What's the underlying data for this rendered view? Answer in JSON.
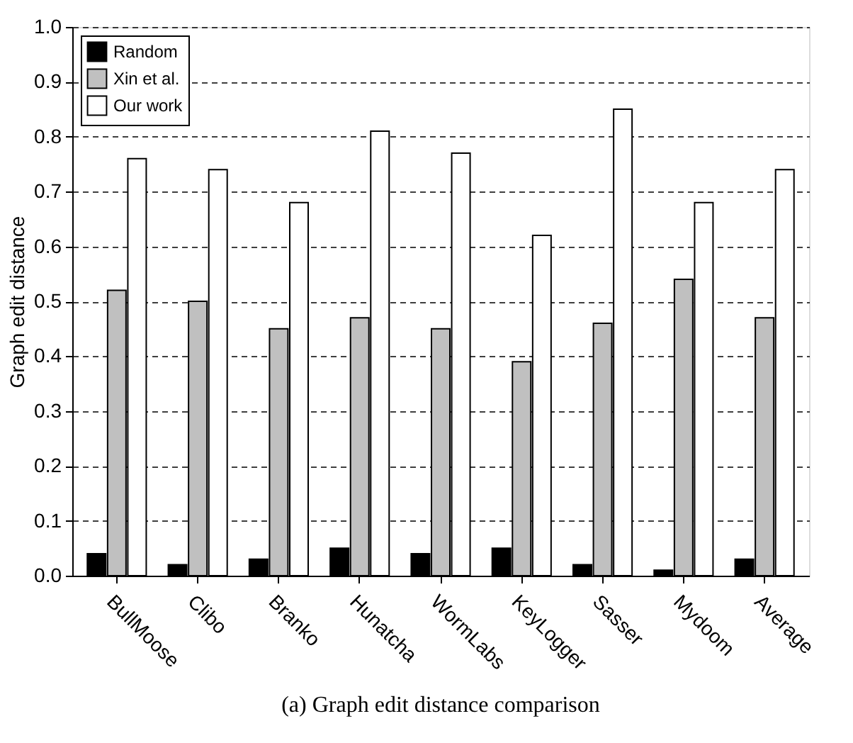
{
  "chart_data": {
    "type": "bar",
    "ylabel": "Graph edit distance",
    "categories": [
      "BullMoose",
      "Clibo",
      "Branko",
      "Hunatcha",
      "WormLabs",
      "KeyLogger",
      "Sasser",
      "Mydoom",
      "Average"
    ],
    "series": [
      {
        "name": "Random",
        "color": "#000000",
        "values": [
          0.04,
          0.02,
          0.03,
          0.05,
          0.04,
          0.05,
          0.02,
          0.01,
          0.03
        ]
      },
      {
        "name": "Xin et al.",
        "color": "#c0c0c0",
        "values": [
          0.52,
          0.5,
          0.45,
          0.47,
          0.45,
          0.39,
          0.46,
          0.54,
          0.47
        ]
      },
      {
        "name": "Our work",
        "color": "#ffffff",
        "values": [
          0.76,
          0.74,
          0.68,
          0.81,
          0.77,
          0.62,
          0.85,
          0.68,
          0.74
        ]
      }
    ],
    "ylim": [
      0,
      1.0
    ],
    "yticks": [
      {
        "value": 0,
        "label": "0.0"
      },
      {
        "value": 0.1,
        "label": "0.1"
      },
      {
        "value": 0.2,
        "label": "0.2"
      },
      {
        "value": 0.3,
        "label": "0.3"
      },
      {
        "value": 0.4,
        "label": "0.4"
      },
      {
        "value": 0.5,
        "label": "0.5"
      },
      {
        "value": 0.6,
        "label": "0.6"
      },
      {
        "value": 0.7,
        "label": "0.7"
      },
      {
        "value": 0.8,
        "label": "0.8"
      },
      {
        "value": 0.9,
        "label": "0.9"
      },
      {
        "value": 1.0,
        "label": "1.0"
      }
    ],
    "grid": "y",
    "legend": "top left",
    "annotations": [
      "(a) Graph edit distance comparison"
    ]
  }
}
